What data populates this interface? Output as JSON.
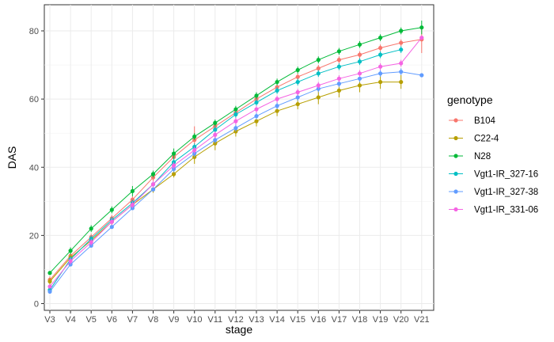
{
  "chart_data": {
    "type": "line",
    "xlabel": "stage",
    "ylabel": "DAS",
    "ylim": [
      0,
      84
    ],
    "yticks": [
      0,
      20,
      40,
      60,
      80
    ],
    "grid": true,
    "legend_position": "right",
    "legend_title": "genotype",
    "categories": [
      "V3",
      "V4",
      "V5",
      "V6",
      "V7",
      "V8",
      "V9",
      "V10",
      "V11",
      "V12",
      "V13",
      "V14",
      "V15",
      "V16",
      "V17",
      "V18",
      "V19",
      "V20",
      "V21"
    ],
    "series": [
      {
        "name": "B104",
        "color": "#F8766D",
        "values": [
          7,
          14,
          19.5,
          25,
          30.5,
          37,
          43,
          48,
          52,
          56,
          60,
          63.5,
          66.5,
          69,
          71.5,
          73,
          75,
          76.5,
          77.5
        ],
        "errors": [
          1,
          1,
          1,
          1,
          1,
          1.5,
          1,
          4,
          1,
          1,
          1,
          1,
          1,
          1,
          1,
          1,
          1,
          1,
          4
        ]
      },
      {
        "name": "C22-4",
        "color": "#B79F00",
        "values": [
          6.5,
          13.5,
          18.5,
          24,
          29,
          33.5,
          38,
          43,
          47,
          50.5,
          53.5,
          56.5,
          58.5,
          60.5,
          62.5,
          64,
          65,
          65,
          null
        ],
        "errors": [
          1,
          1,
          1,
          1,
          1,
          1,
          1,
          2,
          2,
          1.5,
          1.5,
          1.5,
          1.5,
          2,
          2,
          2,
          2,
          2,
          null
        ]
      },
      {
        "name": "N28",
        "color": "#00BA38",
        "values": [
          9,
          15.5,
          22,
          27.5,
          33,
          38,
          44,
          49,
          53,
          57,
          61,
          65,
          68.5,
          71.5,
          74,
          76,
          78,
          80,
          81
        ],
        "errors": [
          0.5,
          1,
          1,
          1,
          1.5,
          1,
          1.5,
          1,
          1,
          1,
          1,
          1,
          1,
          1,
          1,
          1,
          1,
          1,
          2
        ]
      },
      {
        "name": "Vgt1-IR_327-16",
        "color": "#00BFC4",
        "values": [
          4,
          13,
          19,
          24.5,
          29.5,
          35,
          41.5,
          46,
          51,
          55.5,
          59,
          62.5,
          65,
          67.5,
          69.5,
          71,
          73,
          74.5,
          null
        ],
        "errors": [
          0.5,
          1,
          1,
          1,
          1,
          1,
          1,
          1,
          1,
          1,
          1,
          1,
          1,
          1,
          1,
          1,
          1,
          1,
          null
        ]
      },
      {
        "name": "Vgt1-IR_327-38",
        "color": "#619CFF",
        "values": [
          3.5,
          11.5,
          17,
          22.5,
          28,
          33.5,
          39.5,
          44,
          48,
          51.5,
          55,
          58,
          60.5,
          63,
          64.5,
          66,
          67.5,
          68,
          67
        ],
        "errors": [
          0.5,
          0.5,
          0.5,
          0.5,
          0.5,
          0.5,
          1,
          1,
          1,
          1,
          1,
          1,
          1,
          1,
          1,
          1,
          1,
          1,
          0.5
        ]
      },
      {
        "name": "Vgt1-IR_331-06",
        "color": "#F564E3",
        "values": [
          5,
          12.5,
          18,
          24,
          29,
          35,
          40.5,
          45,
          49.5,
          53.5,
          57,
          60,
          62,
          64,
          66,
          67.5,
          69.5,
          70.5,
          78
        ],
        "errors": [
          0.5,
          1,
          1,
          1,
          1,
          1,
          1,
          1,
          1,
          1,
          1,
          1,
          1,
          1,
          1,
          1,
          1,
          1,
          0.5
        ]
      }
    ]
  }
}
